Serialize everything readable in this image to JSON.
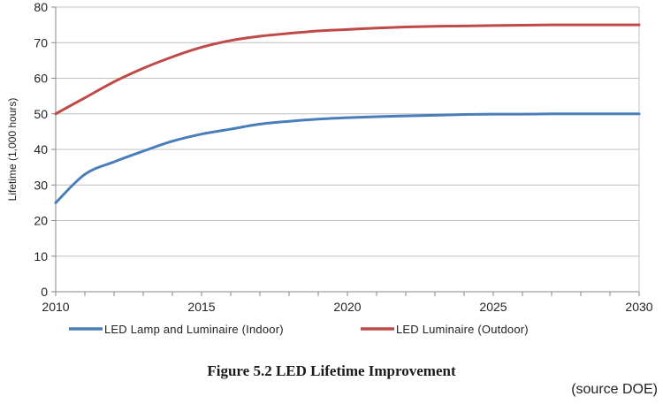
{
  "chart_data": {
    "type": "line",
    "ylabel": "Lifetime (1,000 hours)",
    "xlabel": "",
    "xlim": [
      2010,
      2030
    ],
    "ylim": [
      0,
      80
    ],
    "xticks": [
      "2010",
      "2015",
      "2020",
      "2025",
      "2030"
    ],
    "yticks": [
      "0",
      "10",
      "20",
      "30",
      "40",
      "50",
      "60",
      "70",
      "80"
    ],
    "grid": true,
    "legend_position": "bottom",
    "x": [
      2010,
      2011,
      2012,
      2013,
      2014,
      2015,
      2016,
      2017,
      2018,
      2019,
      2020,
      2021,
      2022,
      2023,
      2024,
      2025,
      2026,
      2027,
      2028,
      2029,
      2030
    ],
    "series": [
      {
        "name": "LED Lamp and Luminaire (Indoor)",
        "color": "#4a7ebb",
        "values": [
          25,
          33,
          36.5,
          39.5,
          42.3,
          44.3,
          45.7,
          47.1,
          47.9,
          48.5,
          48.9,
          49.2,
          49.4,
          49.6,
          49.8,
          49.9,
          49.9,
          50,
          50,
          50,
          50
        ]
      },
      {
        "name": "LED Luminaire (Outdoor)",
        "color": "#be4b48",
        "values": [
          50,
          54.5,
          59,
          62.8,
          66,
          68.7,
          70.6,
          71.8,
          72.6,
          73.3,
          73.7,
          74.1,
          74.4,
          74.6,
          74.7,
          74.8,
          74.9,
          75,
          75,
          75,
          75
        ]
      }
    ]
  },
  "caption": "Figure 5.2 LED Lifetime Improvement",
  "source": "(source DOE)"
}
